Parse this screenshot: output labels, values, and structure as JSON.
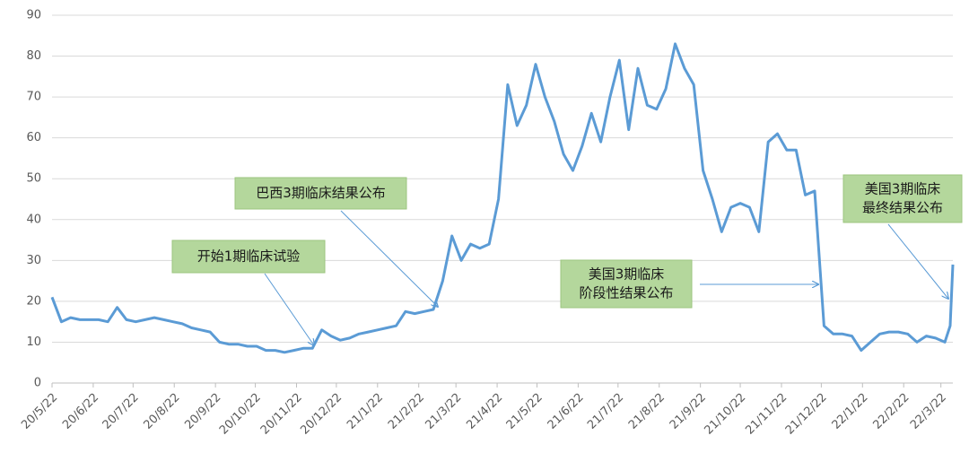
{
  "chart_data": {
    "type": "line",
    "color": "#5b9bd5",
    "grid": true,
    "x": [
      "20/5/22",
      "20/5/29",
      "20/6/5",
      "20/6/12",
      "20/6/19",
      "20/6/26",
      "20/7/3",
      "20/7/10",
      "20/7/17",
      "20/7/24",
      "20/7/31",
      "20/8/7",
      "20/8/14",
      "20/8/21",
      "20/8/28",
      "20/9/4",
      "20/9/11",
      "20/9/18",
      "20/9/25",
      "20/10/2",
      "20/10/9",
      "20/10/16",
      "20/10/23",
      "20/10/30",
      "20/11/6",
      "20/11/13",
      "20/11/20",
      "20/11/27",
      "20/12/4",
      "20/12/11",
      "20/12/18",
      "20/12/25",
      "21/1/1",
      "21/1/8",
      "21/1/15",
      "21/1/22",
      "21/1/29",
      "21/2/5",
      "21/2/12",
      "21/2/19",
      "21/2/26",
      "21/3/5",
      "21/3/12",
      "21/3/19",
      "21/3/26",
      "21/4/2",
      "21/4/9",
      "21/4/16",
      "21/4/23",
      "21/4/30",
      "21/5/7",
      "21/5/14",
      "21/5/21",
      "21/5/28",
      "21/6/4",
      "21/6/11",
      "21/6/18",
      "21/6/25",
      "21/7/2",
      "21/7/9",
      "21/7/16",
      "21/7/23",
      "21/7/30",
      "21/8/6",
      "21/8/13",
      "21/8/20",
      "21/8/27",
      "21/9/3",
      "21/9/10",
      "21/9/17",
      "21/9/24",
      "21/10/1",
      "21/10/8",
      "21/10/15",
      "21/10/22",
      "21/10/29",
      "21/11/5",
      "21/11/12",
      "21/11/19",
      "21/11/26",
      "21/12/3",
      "21/12/10",
      "21/12/17",
      "21/12/24",
      "21/12/31",
      "22/1/7",
      "22/1/14",
      "22/1/21",
      "22/1/28",
      "22/2/4",
      "22/2/11",
      "22/2/18",
      "22/2/25",
      "22/3/4",
      "22/3/11",
      "22/3/18",
      "22/3/25",
      "22/3/29",
      "22/3/31"
    ],
    "values": [
      21,
      15,
      16,
      15.5,
      15.5,
      15.5,
      15,
      18.5,
      15.5,
      15,
      15.5,
      16,
      15.5,
      15,
      14.5,
      13.5,
      13,
      12.5,
      10,
      9.5,
      9.5,
      9,
      9,
      8,
      8,
      7.5,
      8,
      8.5,
      8.5,
      13,
      11.5,
      10.5,
      11,
      12,
      12.5,
      13,
      13.5,
      14,
      17.5,
      17,
      17.5,
      18,
      25,
      36,
      30,
      34,
      33,
      34,
      45,
      73,
      63,
      68,
      78,
      70,
      64,
      56,
      52,
      58,
      66,
      59,
      70,
      79,
      62,
      77,
      68,
      67,
      72,
      83,
      77,
      73,
      52,
      45,
      37,
      43,
      44,
      43,
      37,
      59,
      61,
      57,
      57,
      46,
      47,
      14,
      12,
      12,
      11.5,
      8,
      10,
      12,
      12.5,
      12.5,
      12,
      10,
      11.5,
      11,
      10,
      14,
      29
    ],
    "xlim": [
      "20/5/22",
      "22/3/31"
    ],
    "xticks": [
      "20/5/22",
      "20/6/22",
      "20/7/22",
      "20/8/22",
      "20/9/22",
      "20/10/22",
      "20/11/22",
      "20/12/22",
      "21/1/22",
      "21/2/22",
      "21/3/22",
      "21/4/22",
      "21/5/22",
      "21/6/22",
      "21/7/22",
      "21/8/22",
      "21/9/22",
      "21/10/22",
      "21/11/22",
      "21/12/22",
      "22/1/22",
      "22/2/22",
      "22/3/22"
    ],
    "ylim": [
      0,
      90
    ],
    "yticks": [
      0,
      10,
      20,
      30,
      40,
      50,
      60,
      70,
      80,
      90
    ],
    "annotations": [
      {
        "lines": [
          "开始1期临床试验"
        ]
      },
      {
        "lines": [
          "巴西3期临床结果公布"
        ]
      },
      {
        "lines": [
          "美国3期临床",
          "阶段性结果公布"
        ]
      },
      {
        "lines": [
          "美国3期临床",
          "最终结果公布"
        ]
      }
    ]
  }
}
